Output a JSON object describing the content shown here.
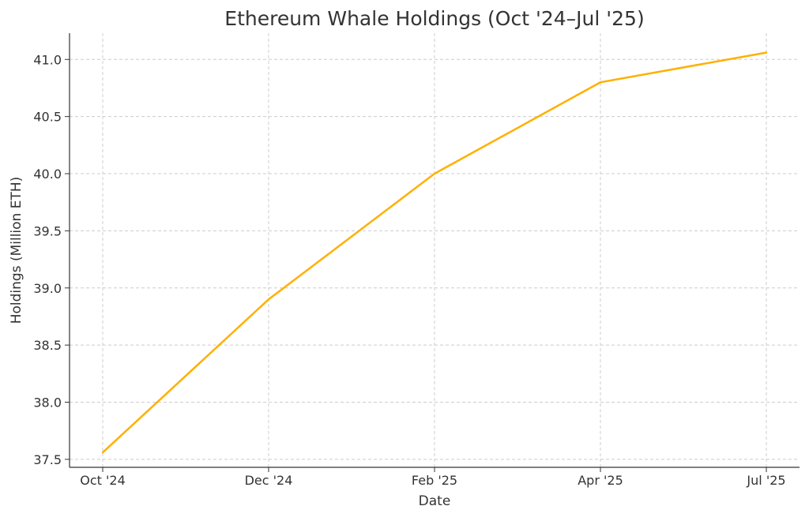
{
  "chart_data": {
    "type": "line",
    "title": "Ethereum Whale Holdings (Oct '24–Jul '25)",
    "xlabel": "Date",
    "ylabel": "Holdings (Million ETH)",
    "categories": [
      "Oct '24",
      "Dec '24",
      "Feb '25",
      "Apr '25",
      "Jul '25"
    ],
    "series": [
      {
        "values": [
          37.56,
          38.9,
          40.0,
          40.8,
          41.06
        ],
        "color": "#FFB000"
      }
    ],
    "yticks": [
      "37.5",
      "38.0",
      "38.5",
      "39.0",
      "39.5",
      "40.0",
      "40.5",
      "41.0"
    ],
    "ylim": [
      37.43,
      41.23
    ],
    "grid": true,
    "grid_style": "dashed",
    "legend": false
  }
}
